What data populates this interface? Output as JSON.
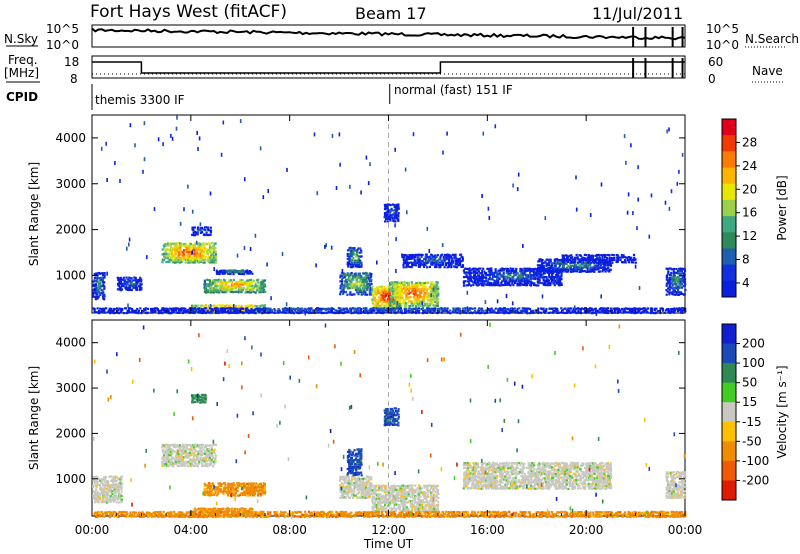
{
  "header": {
    "station": "Fort Hays West (fitACF)",
    "beam": "Beam 17",
    "date": "11/Jul/2011"
  },
  "noise_panel": {
    "left_label": "N.Sky",
    "left_ticks": [
      "10^5",
      "10^0"
    ],
    "right_ticks": [
      "10^5",
      "10^0"
    ],
    "right_label": "N.Search"
  },
  "freq_panel": {
    "left_label_1": "Freq.",
    "left_label_2": "[MHz]",
    "left_ticks": [
      "18",
      "8"
    ],
    "right_ticks": [
      "60",
      "0"
    ],
    "right_label": "Nave"
  },
  "cpid_panel": {
    "label": "CPID",
    "mode_1": "themis 3300 IF",
    "mode_2": "normal (fast) 151 IF"
  },
  "chart_data": [
    {
      "type": "heatmap",
      "name": "power",
      "ylabel": "Slant Range [km]",
      "ylim": [
        180,
        4500
      ],
      "yticks": [
        1000,
        2000,
        3000,
        4000
      ],
      "xlim": [
        0,
        24
      ],
      "xticks": [
        "00:00",
        "04:00",
        "08:00",
        "12:00",
        "16:00",
        "20:00",
        "00:00"
      ],
      "colorbar": {
        "label": "Power [dB]",
        "ticks": [
          "28",
          "24",
          "20",
          "16",
          "12",
          "8",
          "4"
        ],
        "colors": [
          "#e0001a",
          "#f23a00",
          "#ff7a00",
          "#ffb400",
          "#e8e600",
          "#9ad04a",
          "#40a880",
          "#2f8a5a",
          "#1f5fb0",
          "#1030e0",
          "#0a1ee0"
        ]
      },
      "echo_regions": [
        {
          "t0": 0.0,
          "t1": 0.5,
          "r0": 500,
          "r1": 1100,
          "peak": 12
        },
        {
          "t0": 1.0,
          "t1": 2.0,
          "r0": 700,
          "r1": 1000,
          "peak": 8
        },
        {
          "t0": 2.8,
          "t1": 5.0,
          "r0": 1300,
          "r1": 1750,
          "peak": 28
        },
        {
          "t0": 4.0,
          "t1": 4.8,
          "r0": 1900,
          "r1": 2100,
          "peak": 8
        },
        {
          "t0": 4.5,
          "t1": 7.0,
          "r0": 650,
          "r1": 950,
          "peak": 24
        },
        {
          "t0": 5.0,
          "t1": 6.5,
          "r0": 1050,
          "r1": 1150,
          "peak": 12
        },
        {
          "t0": 4.0,
          "t1": 7.0,
          "r0": 200,
          "r1": 400,
          "peak": 26
        },
        {
          "t0": 10.0,
          "t1": 11.3,
          "r0": 600,
          "r1": 1100,
          "peak": 18
        },
        {
          "t0": 10.3,
          "t1": 10.9,
          "r0": 1200,
          "r1": 1650,
          "peak": 16
        },
        {
          "t0": 11.3,
          "t1": 12.5,
          "r0": 300,
          "r1": 800,
          "peak": 30
        },
        {
          "t0": 12.0,
          "t1": 14.0,
          "r0": 350,
          "r1": 900,
          "peak": 26
        },
        {
          "t0": 12.5,
          "t1": 15.0,
          "r0": 1200,
          "r1": 1500,
          "peak": 8
        },
        {
          "t0": 11.8,
          "t1": 12.4,
          "r0": 2200,
          "r1": 2600,
          "peak": 8
        },
        {
          "t0": 15.0,
          "t1": 19.0,
          "r0": 800,
          "r1": 1200,
          "peak": 8
        },
        {
          "t0": 18.0,
          "t1": 21.0,
          "r0": 1100,
          "r1": 1400,
          "peak": 12
        },
        {
          "t0": 19.0,
          "t1": 22.0,
          "r0": 1300,
          "r1": 1500,
          "peak": 4
        },
        {
          "t0": 23.2,
          "t1": 24.0,
          "r0": 600,
          "r1": 1200,
          "peak": 12
        },
        {
          "t0": 0.0,
          "t1": 24.0,
          "r0": 200,
          "r1": 330,
          "peak": 8
        }
      ]
    },
    {
      "type": "heatmap",
      "name": "velocity",
      "ylabel": "Slant Range [km]",
      "ylim": [
        180,
        4500
      ],
      "yticks": [
        1000,
        2000,
        3000,
        4000
      ],
      "xlim": [
        0,
        24
      ],
      "xticks": [
        "00:00",
        "04:00",
        "08:00",
        "12:00",
        "16:00",
        "20:00",
        "00:00"
      ],
      "xlabel": "Time UT",
      "colorbar": {
        "label": "Velocity [m s⁻¹]",
        "ticks": [
          "200",
          "100",
          "50",
          "15",
          "-15",
          "-50",
          "-100",
          "-200"
        ],
        "colors": [
          "#1020d0",
          "#1a4ab8",
          "#2e8a52",
          "#44cc22",
          "#c8c8c0",
          "#ffc000",
          "#f08c00",
          "#f05a00",
          "#e01a00"
        ]
      },
      "echo_regions": [
        {
          "t0": 0.0,
          "t1": 1.2,
          "r0": 500,
          "r1": 1100,
          "vel": 0
        },
        {
          "t0": 2.8,
          "t1": 5.0,
          "r0": 1300,
          "r1": 1800,
          "vel": 0
        },
        {
          "t0": 4.5,
          "t1": 7.0,
          "r0": 650,
          "r1": 950,
          "vel": -60
        },
        {
          "t0": 4.0,
          "t1": 6.5,
          "r0": 200,
          "r1": 400,
          "vel": -60
        },
        {
          "t0": 10.0,
          "t1": 11.3,
          "r0": 600,
          "r1": 1100,
          "vel": 0
        },
        {
          "t0": 10.3,
          "t1": 10.9,
          "r0": 1100,
          "r1": 1700,
          "vel": 150
        },
        {
          "t0": 11.3,
          "t1": 14.0,
          "r0": 300,
          "r1": 900,
          "vel": 0
        },
        {
          "t0": 0.0,
          "t1": 24.0,
          "r0": 180,
          "r1": 320,
          "vel": -60
        },
        {
          "t0": 15.0,
          "t1": 21.0,
          "r0": 800,
          "r1": 1400,
          "vel": 0
        },
        {
          "t0": 23.2,
          "t1": 24.0,
          "r0": 600,
          "r1": 1200,
          "vel": 0
        },
        {
          "t0": 11.8,
          "t1": 12.4,
          "r0": 2200,
          "r1": 2600,
          "vel": 150
        },
        {
          "t0": 4.0,
          "t1": 4.6,
          "r0": 2700,
          "r1": 2900,
          "vel": 60
        }
      ]
    }
  ]
}
